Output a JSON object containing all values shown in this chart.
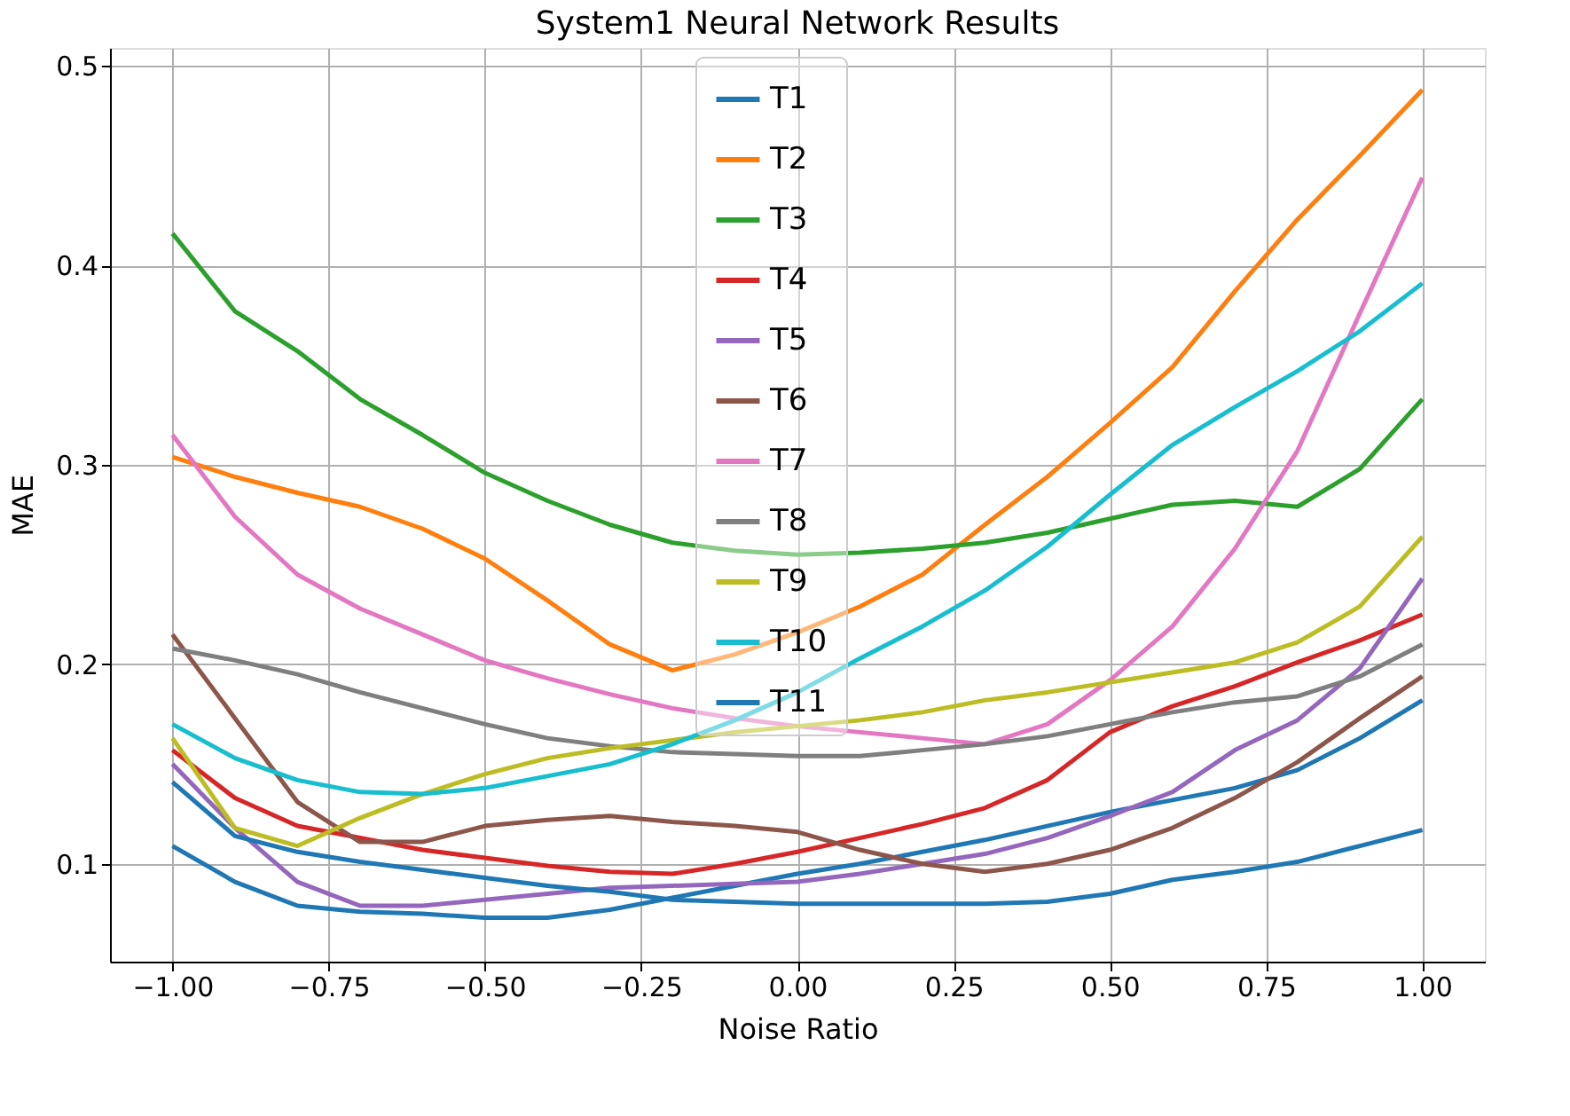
{
  "chart_data": {
    "type": "line",
    "title": "System1 Neural Network Results",
    "xlabel": "Noise Ratio",
    "ylabel": "MAE",
    "x": [
      -1.0,
      -0.9,
      -0.8,
      -0.7,
      -0.6,
      -0.5,
      -0.4,
      -0.3,
      -0.2,
      -0.1,
      0.0,
      0.1,
      0.2,
      0.3,
      0.4,
      0.5,
      0.6,
      0.7,
      0.8,
      0.9,
      1.0
    ],
    "series": [
      {
        "name": "T1",
        "color": "#1f77b4",
        "values": [
          0.109,
          0.091,
          0.079,
          0.076,
          0.075,
          0.073,
          0.073,
          0.077,
          0.083,
          0.089,
          0.095,
          0.1,
          0.106,
          0.112,
          0.119,
          0.126,
          0.132,
          0.138,
          0.147,
          0.163,
          0.182
        ]
      },
      {
        "name": "T2",
        "color": "#ff7f0e",
        "values": [
          0.304,
          0.294,
          0.286,
          0.279,
          0.268,
          0.253,
          0.232,
          0.21,
          0.197,
          0.205,
          0.216,
          0.229,
          0.245,
          0.27,
          0.294,
          0.321,
          0.349,
          0.387,
          0.423,
          0.455,
          0.488
        ]
      },
      {
        "name": "T3",
        "color": "#2ca02c",
        "values": [
          0.416,
          0.377,
          0.357,
          0.333,
          0.315,
          0.296,
          0.282,
          0.27,
          0.261,
          0.257,
          0.255,
          0.256,
          0.258,
          0.261,
          0.266,
          0.273,
          0.28,
          0.282,
          0.279,
          0.298,
          0.333
        ]
      },
      {
        "name": "T4",
        "color": "#d62728",
        "values": [
          0.157,
          0.133,
          0.119,
          0.113,
          0.107,
          0.103,
          0.099,
          0.096,
          0.095,
          0.1,
          0.106,
          0.113,
          0.12,
          0.128,
          0.142,
          0.166,
          0.179,
          0.189,
          0.201,
          0.212,
          0.225
        ]
      },
      {
        "name": "T5",
        "color": "#9467bd",
        "values": [
          0.15,
          0.118,
          0.091,
          0.079,
          0.079,
          0.082,
          0.085,
          0.088,
          0.089,
          0.09,
          0.091,
          0.095,
          0.1,
          0.105,
          0.113,
          0.124,
          0.136,
          0.157,
          0.172,
          0.198,
          0.243
        ]
      },
      {
        "name": "T6",
        "color": "#8c564b",
        "values": [
          0.215,
          0.173,
          0.131,
          0.111,
          0.111,
          0.119,
          0.122,
          0.124,
          0.121,
          0.119,
          0.116,
          0.107,
          0.1,
          0.096,
          0.1,
          0.107,
          0.118,
          0.133,
          0.151,
          0.173,
          0.194
        ]
      },
      {
        "name": "T7",
        "color": "#e377c2",
        "values": [
          0.315,
          0.274,
          0.245,
          0.228,
          0.215,
          0.202,
          0.193,
          0.185,
          0.178,
          0.173,
          0.169,
          0.166,
          0.163,
          0.16,
          0.17,
          0.192,
          0.219,
          0.258,
          0.307,
          0.376,
          0.444
        ]
      },
      {
        "name": "T8",
        "color": "#7f7f7f",
        "values": [
          0.208,
          0.202,
          0.195,
          0.186,
          0.178,
          0.17,
          0.163,
          0.159,
          0.156,
          0.155,
          0.154,
          0.154,
          0.157,
          0.16,
          0.164,
          0.17,
          0.176,
          0.181,
          0.184,
          0.194,
          0.21
        ]
      },
      {
        "name": "T9",
        "color": "#bcbd22",
        "values": [
          0.163,
          0.118,
          0.109,
          0.123,
          0.135,
          0.145,
          0.153,
          0.158,
          0.162,
          0.166,
          0.169,
          0.172,
          0.176,
          0.182,
          0.186,
          0.191,
          0.196,
          0.201,
          0.211,
          0.229,
          0.264
        ]
      },
      {
        "name": "T10",
        "color": "#17becf",
        "values": [
          0.17,
          0.153,
          0.142,
          0.136,
          0.135,
          0.138,
          0.144,
          0.15,
          0.16,
          0.172,
          0.186,
          0.203,
          0.219,
          0.237,
          0.259,
          0.285,
          0.31,
          0.329,
          0.347,
          0.367,
          0.391
        ]
      },
      {
        "name": "T11",
        "color": "#1f77b4",
        "values": [
          0.141,
          0.114,
          0.106,
          0.101,
          0.097,
          0.093,
          0.089,
          0.086,
          0.082,
          0.081,
          0.08,
          0.08,
          0.08,
          0.08,
          0.081,
          0.085,
          0.092,
          0.096,
          0.101,
          0.109,
          0.117
        ]
      }
    ],
    "xlim": [
      -1.1,
      1.1
    ],
    "ylim": [
      0.051,
      0.509
    ],
    "xticks": [
      {
        "value": -1.0,
        "label": "−1.00"
      },
      {
        "value": -0.75,
        "label": "−0.75"
      },
      {
        "value": -0.5,
        "label": "−0.50"
      },
      {
        "value": -0.25,
        "label": "−0.25"
      },
      {
        "value": 0.0,
        "label": "0.00"
      },
      {
        "value": 0.25,
        "label": "0.25"
      },
      {
        "value": 0.5,
        "label": "0.50"
      },
      {
        "value": 0.75,
        "label": "0.75"
      },
      {
        "value": 1.0,
        "label": "1.00"
      }
    ],
    "yticks": [
      0.1,
      0.2,
      0.3,
      0.4,
      0.5
    ],
    "grid": true,
    "legend": "top",
    "line_style": "solid"
  }
}
